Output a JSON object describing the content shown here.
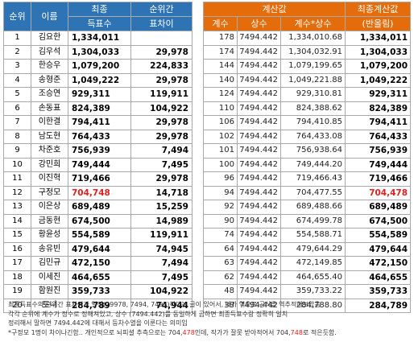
{
  "headers": {
    "rank": "순위",
    "name": "이름",
    "final_line1": "최종",
    "final_line2": "득표수",
    "gap_line1": "순위간",
    "gap_line2": "표차이",
    "calc_group": "계산값",
    "calc_count": "계수",
    "calc_const": "상수",
    "calc_product": "계수*상수",
    "result_line1": "최종계산값",
    "result_line2": "(반올림)"
  },
  "rows": [
    {
      "rank": "1",
      "name": "김요한",
      "final": "1,334,011",
      "gap": "",
      "count": "178",
      "const": "7494.442",
      "product": "1,334,010.68",
      "rounded": "1,334,011",
      "highlight": false
    },
    {
      "rank": "2",
      "name": "김우석",
      "final": "1,304,033",
      "gap": "29,978",
      "count": "174",
      "const": "7494.442",
      "product": "1,304,032.91",
      "rounded": "1,304,033",
      "highlight": false
    },
    {
      "rank": "3",
      "name": "한승우",
      "final": "1,079,200",
      "gap": "224,833",
      "count": "144",
      "const": "7494.442",
      "product": "1,079,199.65",
      "rounded": "1,079,200",
      "highlight": false
    },
    {
      "rank": "4",
      "name": "송형준",
      "final": "1,049,222",
      "gap": "29,978",
      "count": "140",
      "const": "7494.442",
      "product": "1,049,221.88",
      "rounded": "1,049,222",
      "highlight": false
    },
    {
      "rank": "5",
      "name": "조승연",
      "final": "929,311",
      "gap": "119,911",
      "count": "124",
      "const": "7494.442",
      "product": "929,310.81",
      "rounded": "929,311",
      "highlight": false
    },
    {
      "rank": "6",
      "name": "손동표",
      "final": "824,389",
      "gap": "104,922",
      "count": "110",
      "const": "7494.442",
      "product": "824,388.62",
      "rounded": "824,389",
      "highlight": false
    },
    {
      "rank": "7",
      "name": "이한결",
      "final": "794,411",
      "gap": "29,978",
      "count": "106",
      "const": "7494.442",
      "product": "794,410.85",
      "rounded": "794,411",
      "highlight": false
    },
    {
      "rank": "8",
      "name": "남도현",
      "final": "764,433",
      "gap": "29,978",
      "count": "102",
      "const": "7494.442",
      "product": "764,433.08",
      "rounded": "764,433",
      "highlight": false
    },
    {
      "rank": "9",
      "name": "차준호",
      "final": "756,939",
      "gap": "7,494",
      "count": "101",
      "const": "7494.442",
      "product": "756,938.64",
      "rounded": "756,939",
      "highlight": false
    },
    {
      "rank": "10",
      "name": "강민희",
      "final": "749,444",
      "gap": "7,495",
      "count": "100",
      "const": "7494.442",
      "product": "749,444.20",
      "rounded": "749,444",
      "highlight": false
    },
    {
      "rank": "11",
      "name": "이진혁",
      "final": "719,466",
      "gap": "29,978",
      "count": "96",
      "const": "7494.442",
      "product": "719,466.43",
      "rounded": "719,466",
      "highlight": false
    },
    {
      "rank": "12",
      "name": "구정모",
      "final": "704,748",
      "gap": "14,718",
      "count": "94",
      "const": "7494.442",
      "product": "704,477.55",
      "rounded": "704,478",
      "highlight": true
    },
    {
      "rank": "13",
      "name": "이은상",
      "final": "689,489",
      "gap": "15,259",
      "count": "92",
      "const": "7494.442",
      "product": "689,488.66",
      "rounded": "689,489",
      "highlight": false
    },
    {
      "rank": "14",
      "name": "금동현",
      "final": "674,500",
      "gap": "14,989",
      "count": "90",
      "const": "7494.442",
      "product": "674,499.78",
      "rounded": "674,500",
      "highlight": false
    },
    {
      "rank": "15",
      "name": "황윤성",
      "final": "554,589",
      "gap": "119,911",
      "count": "74",
      "const": "7494.442",
      "product": "554,588.71",
      "rounded": "554,589",
      "highlight": false
    },
    {
      "rank": "16",
      "name": "송유빈",
      "final": "479,644",
      "gap": "74,945",
      "count": "64",
      "const": "7494.442",
      "product": "479,644.29",
      "rounded": "479,644",
      "highlight": false
    },
    {
      "rank": "17",
      "name": "김민규",
      "final": "472,150",
      "gap": "7,494",
      "count": "63",
      "const": "7494.442",
      "product": "472,149.85",
      "rounded": "472,150",
      "highlight": false
    },
    {
      "rank": "18",
      "name": "이세진",
      "final": "464,655",
      "gap": "7,495",
      "count": "62",
      "const": "7494.442",
      "product": "464,655.40",
      "rounded": "464,655",
      "highlight": false
    },
    {
      "rank": "19",
      "name": "함원진",
      "final": "359,733",
      "gap": "104,922",
      "count": "48",
      "const": "7494.442",
      "product": "359,733.22",
      "rounded": "359,733",
      "highlight": false
    },
    {
      "rank": "20",
      "name": "토니",
      "final": "284,789",
      "gap": "74,944",
      "count": "38",
      "const": "7494.442",
      "product": "284,788.80",
      "rounded": "284,789",
      "highlight": false
    }
  ],
  "notes": {
    "line1": "최종득표수의 순위간 표차이가 일정(29978, 7494, 7495)하다는 글이 있어서, 내가 역으로 공식을 역추적해보았음",
    "line2": "각각 순위에 계수가 정수로 정해져있고, 상수 (7494.442)를 동일하게 곱하면 최종득표수랑 정확히 일치",
    "line3": "정리해서 말하면 7494.442에 대해서 등차수열을 이룬다는 의미임",
    "line4_a": "*구정모 1명이  차이나긴함.. 개인적으로 뇌피셜 추측으로는 ",
    "line4_b": "704,",
    "line4_c": "478",
    "line4_d": "인데, 작가가 잘못 받아적어서 ",
    "line4_e": "704,",
    "line4_f": "748",
    "line4_g": "로 적은듯함."
  },
  "colors": {
    "header_blue": "#2e74b5",
    "header_orange": "#e46c0a",
    "highlight_red": "#e02020"
  }
}
